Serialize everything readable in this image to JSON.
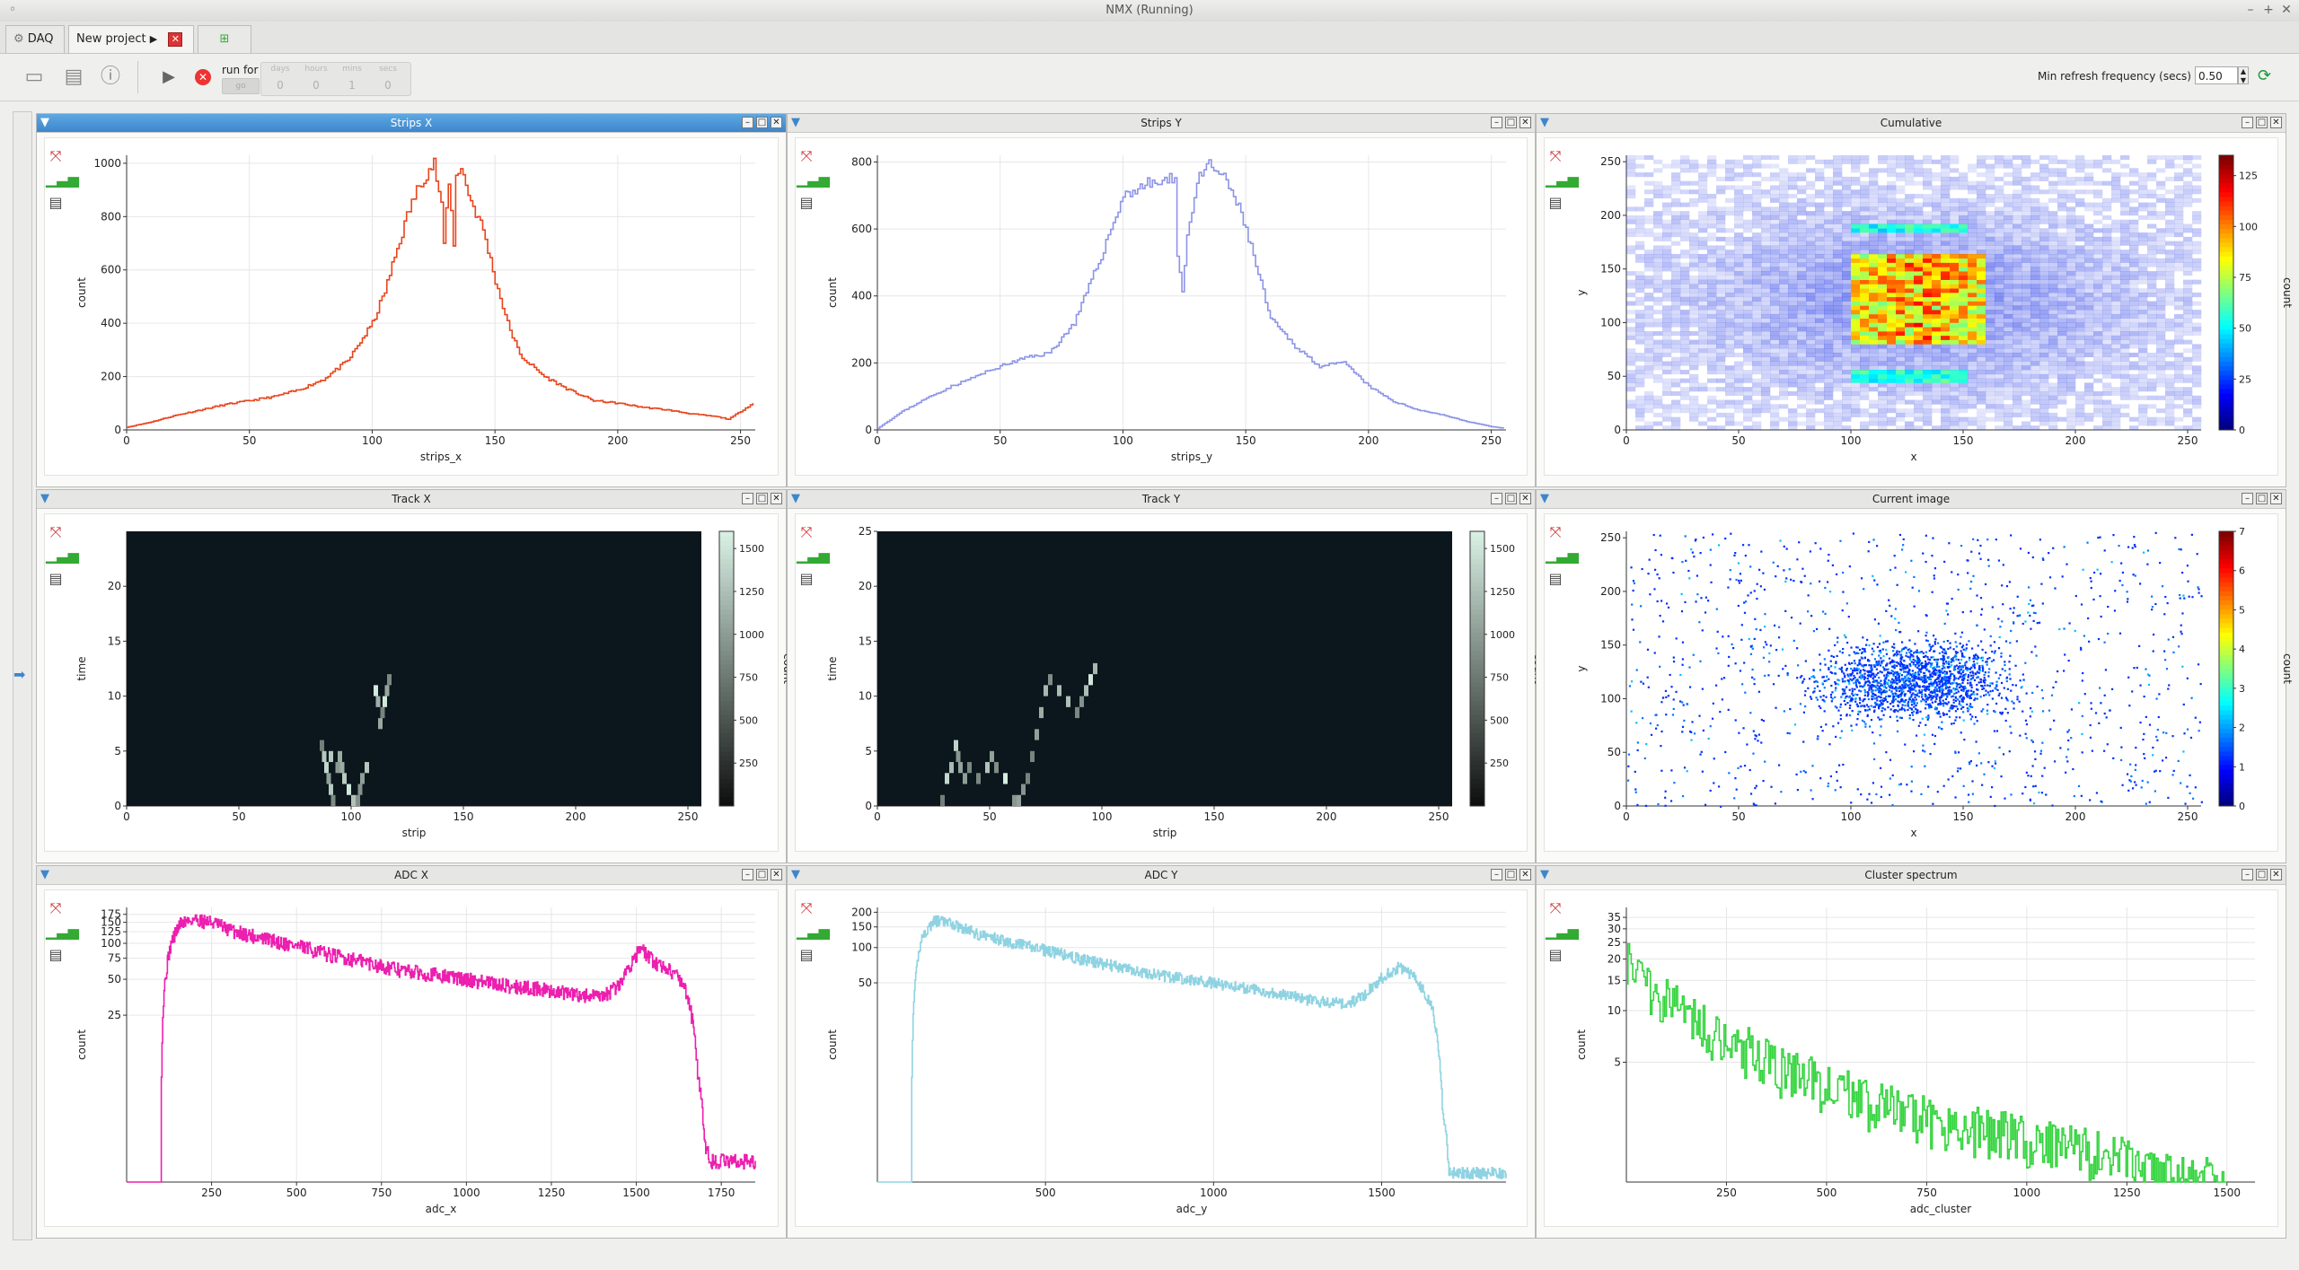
{
  "window": {
    "title": "NMX (Running)"
  },
  "tabs": [
    {
      "label": "DAQ"
    },
    {
      "label": "New project"
    }
  ],
  "toolbar": {
    "run_for_label": "run for",
    "days_label": "days",
    "hours_label": "hours",
    "mins_label": "mins",
    "secs_label": "secs",
    "days_value": "0",
    "hours_value": "0",
    "mins_value": "1",
    "secs_value": "0",
    "go_label": "go",
    "refresh_label": "Min refresh frequency (secs)",
    "refresh_value": "0.50"
  },
  "colors": {
    "strips_x": "#e8451c",
    "strips_y": "#8c94e6",
    "adc_x": "#ec1fae",
    "adc_y": "#8fd3e2",
    "cluster": "#33d43d",
    "track_bg": "#0c161d",
    "accent": "#3d86cc"
  },
  "panels": {
    "p_strips_x": {
      "title": "Strips X"
    },
    "p_strips_y": {
      "title": "Strips Y"
    },
    "p_cumulative": {
      "title": "Cumulative"
    },
    "p_track_x": {
      "title": "Track X"
    },
    "p_track_y": {
      "title": "Track Y"
    },
    "p_current": {
      "title": "Current image"
    },
    "p_adc_x": {
      "title": "ADC X"
    },
    "p_adc_y": {
      "title": "ADC Y"
    },
    "p_cluster": {
      "title": "Cluster spectrum"
    }
  },
  "chart_data": [
    {
      "id": "strips_x",
      "type": "line",
      "xlabel": "strips_x",
      "ylabel": "count",
      "xlim": [
        0,
        256
      ],
      "ylim": [
        0,
        1030
      ],
      "xticks": [
        0,
        50,
        100,
        150,
        200,
        250
      ],
      "yticks": [
        0,
        200,
        400,
        600,
        800,
        1000
      ],
      "x": [
        0,
        10,
        20,
        30,
        40,
        50,
        60,
        70,
        80,
        90,
        100,
        105,
        110,
        115,
        120,
        125,
        128,
        129,
        131,
        133,
        134,
        136,
        138,
        140,
        145,
        150,
        155,
        160,
        170,
        180,
        190,
        200,
        210,
        220,
        230,
        240,
        245,
        250,
        255
      ],
      "y": [
        10,
        30,
        55,
        75,
        95,
        110,
        125,
        150,
        190,
        260,
        400,
        520,
        680,
        830,
        940,
        1000,
        830,
        700,
        940,
        690,
        970,
        980,
        920,
        860,
        750,
        560,
        400,
        280,
        200,
        150,
        110,
        100,
        85,
        75,
        60,
        50,
        40,
        70,
        100
      ],
      "color": "#e8451c"
    },
    {
      "id": "strips_y",
      "type": "line",
      "xlabel": "strips_y",
      "ylabel": "count",
      "xlim": [
        0,
        256
      ],
      "ylim": [
        0,
        820
      ],
      "xticks": [
        0,
        50,
        100,
        150,
        200,
        250
      ],
      "yticks": [
        0,
        200,
        400,
        600,
        800
      ],
      "x": [
        0,
        10,
        20,
        30,
        40,
        50,
        60,
        70,
        80,
        90,
        100,
        110,
        118,
        121,
        122,
        124,
        126,
        130,
        135,
        140,
        145,
        150,
        160,
        170,
        180,
        190,
        200,
        210,
        220,
        230,
        240,
        250,
        255
      ],
      "y": [
        5,
        55,
        95,
        130,
        160,
        190,
        215,
        230,
        320,
        500,
        700,
        735,
        740,
        760,
        530,
        410,
        580,
        740,
        790,
        760,
        700,
        600,
        330,
        250,
        190,
        200,
        130,
        85,
        60,
        45,
        25,
        10,
        5
      ],
      "color": "#8c94e6"
    },
    {
      "id": "cumulative",
      "type": "heatmap",
      "xlabel": "x",
      "ylabel": "y",
      "xlim": [
        0,
        256
      ],
      "ylim": [
        0,
        256
      ],
      "xticks": [
        0,
        50,
        100,
        150,
        200,
        250
      ],
      "yticks": [
        0,
        50,
        100,
        150,
        200,
        250
      ],
      "colorbar_label": "count",
      "colorbar_ticks": [
        0,
        25,
        50,
        75,
        100,
        125
      ]
    },
    {
      "id": "track_x",
      "type": "heatmap",
      "xlabel": "strip",
      "ylabel": "time",
      "xlim": [
        0,
        256
      ],
      "ylim": [
        0,
        25
      ],
      "xticks": [
        0,
        50,
        100,
        150,
        200,
        250
      ],
      "yticks": [
        0,
        5,
        10,
        15,
        20
      ],
      "colorbar_label": "count",
      "colorbar_ticks": [
        250,
        500,
        750,
        1000,
        1250,
        1500
      ],
      "cells": [
        [
          86,
          5
        ],
        [
          87,
          4
        ],
        [
          88,
          3
        ],
        [
          89,
          2
        ],
        [
          90,
          1
        ],
        [
          91,
          0
        ],
        [
          93,
          3
        ],
        [
          94,
          4
        ],
        [
          95,
          3
        ],
        [
          96,
          2
        ],
        [
          98,
          1
        ],
        [
          100,
          0
        ],
        [
          102,
          0
        ],
        [
          103,
          1
        ],
        [
          104,
          2
        ],
        [
          106,
          3
        ],
        [
          112,
          7
        ],
        [
          113,
          8
        ],
        [
          114,
          9
        ],
        [
          115,
          10
        ],
        [
          116,
          11
        ],
        [
          111,
          9
        ],
        [
          110,
          10
        ],
        [
          90,
          4
        ]
      ]
    },
    {
      "id": "track_y",
      "type": "heatmap",
      "xlabel": "strip",
      "ylabel": "time",
      "xlim": [
        0,
        256
      ],
      "ylim": [
        0,
        25
      ],
      "xticks": [
        0,
        50,
        100,
        150,
        200,
        250
      ],
      "yticks": [
        0,
        5,
        10,
        15,
        20,
        25
      ],
      "colorbar_label": "count",
      "colorbar_ticks": [
        250,
        500,
        750,
        1000,
        1250,
        1500
      ],
      "cells": [
        [
          28,
          0
        ],
        [
          30,
          2
        ],
        [
          32,
          3
        ],
        [
          34,
          5
        ],
        [
          35,
          4
        ],
        [
          36,
          3
        ],
        [
          38,
          2
        ],
        [
          40,
          3
        ],
        [
          44,
          2
        ],
        [
          48,
          3
        ],
        [
          50,
          4
        ],
        [
          52,
          3
        ],
        [
          56,
          2
        ],
        [
          60,
          0
        ],
        [
          62,
          0
        ],
        [
          64,
          1
        ],
        [
          66,
          2
        ],
        [
          68,
          4
        ],
        [
          70,
          6
        ],
        [
          72,
          8
        ],
        [
          74,
          10
        ],
        [
          76,
          11
        ],
        [
          80,
          10
        ],
        [
          84,
          9
        ],
        [
          88,
          8
        ],
        [
          90,
          9
        ],
        [
          92,
          10
        ],
        [
          94,
          11
        ],
        [
          96,
          12
        ]
      ]
    },
    {
      "id": "current",
      "type": "scatter",
      "xlabel": "x",
      "ylabel": "y",
      "xlim": [
        0,
        256
      ],
      "ylim": [
        0,
        256
      ],
      "xticks": [
        0,
        50,
        100,
        150,
        200,
        250
      ],
      "yticks": [
        0,
        50,
        100,
        150,
        200,
        250
      ],
      "colorbar_label": "count",
      "colorbar_ticks": [
        0,
        1,
        2,
        3,
        4,
        5,
        6,
        7
      ]
    },
    {
      "id": "adc_x",
      "type": "line",
      "xlabel": "adc_x",
      "ylabel": "count",
      "log_y": true,
      "xlim": [
        0,
        1850
      ],
      "ylim": [
        1,
        200
      ],
      "xticks": [
        250,
        500,
        750,
        1000,
        1250,
        1500,
        1750
      ],
      "yticks": [
        25,
        50,
        75,
        100,
        125,
        150,
        175
      ],
      "x": [
        0,
        100,
        110,
        130,
        160,
        200,
        250,
        300,
        400,
        500,
        600,
        700,
        800,
        900,
        1000,
        1100,
        1200,
        1300,
        1400,
        1450,
        1480,
        1510,
        1550,
        1600,
        1640,
        1680,
        1700,
        1720,
        1760,
        1800,
        1850
      ],
      "y": [
        1,
        1,
        40,
        100,
        150,
        160,
        150,
        130,
        110,
        95,
        80,
        70,
        60,
        55,
        50,
        45,
        42,
        38,
        35,
        45,
        65,
        90,
        70,
        60,
        45,
        8,
        2,
        1.5,
        1.5,
        1.5,
        1.5
      ],
      "color": "#ec1fae"
    },
    {
      "id": "adc_y",
      "type": "line",
      "xlabel": "adc_y",
      "ylabel": "count",
      "log_y": true,
      "xlim": [
        0,
        1870
      ],
      "ylim": [
        1,
        220
      ],
      "xticks": [
        500,
        1000,
        1500
      ],
      "yticks": [
        50,
        100,
        150,
        200
      ],
      "x": [
        0,
        100,
        110,
        130,
        170,
        220,
        300,
        400,
        500,
        600,
        700,
        800,
        900,
        1000,
        1100,
        1200,
        1300,
        1400,
        1450,
        1500,
        1550,
        1600,
        1650,
        1680,
        1700,
        1750,
        1870
      ],
      "y": [
        1,
        1,
        40,
        120,
        170,
        160,
        130,
        110,
        95,
        80,
        70,
        60,
        55,
        50,
        45,
        40,
        35,
        33,
        40,
        55,
        68,
        55,
        30,
        4,
        1.2,
        1.2,
        1.2
      ],
      "color": "#8fd3e2"
    },
    {
      "id": "cluster",
      "type": "line",
      "xlabel": "adc_cluster",
      "ylabel": "count",
      "log_y": true,
      "xlim": [
        0,
        1570
      ],
      "ylim": [
        1,
        40
      ],
      "xticks": [
        250,
        500,
        750,
        1000,
        1250,
        1500
      ],
      "yticks": [
        5,
        10,
        15,
        20,
        25,
        30,
        35
      ],
      "x": [
        0,
        50,
        100,
        150,
        200,
        250,
        300,
        350,
        400,
        500,
        600,
        700,
        800,
        900,
        1000,
        1100,
        1200,
        1250,
        1300,
        1400,
        1500
      ],
      "y": [
        22,
        15,
        12,
        10,
        8,
        7,
        6,
        5,
        4.5,
        3.8,
        3,
        2.5,
        2.2,
        2,
        1.8,
        1.6,
        1.5,
        1.3,
        1.1,
        1.05,
        1.02
      ],
      "color": "#33d43d"
    }
  ]
}
